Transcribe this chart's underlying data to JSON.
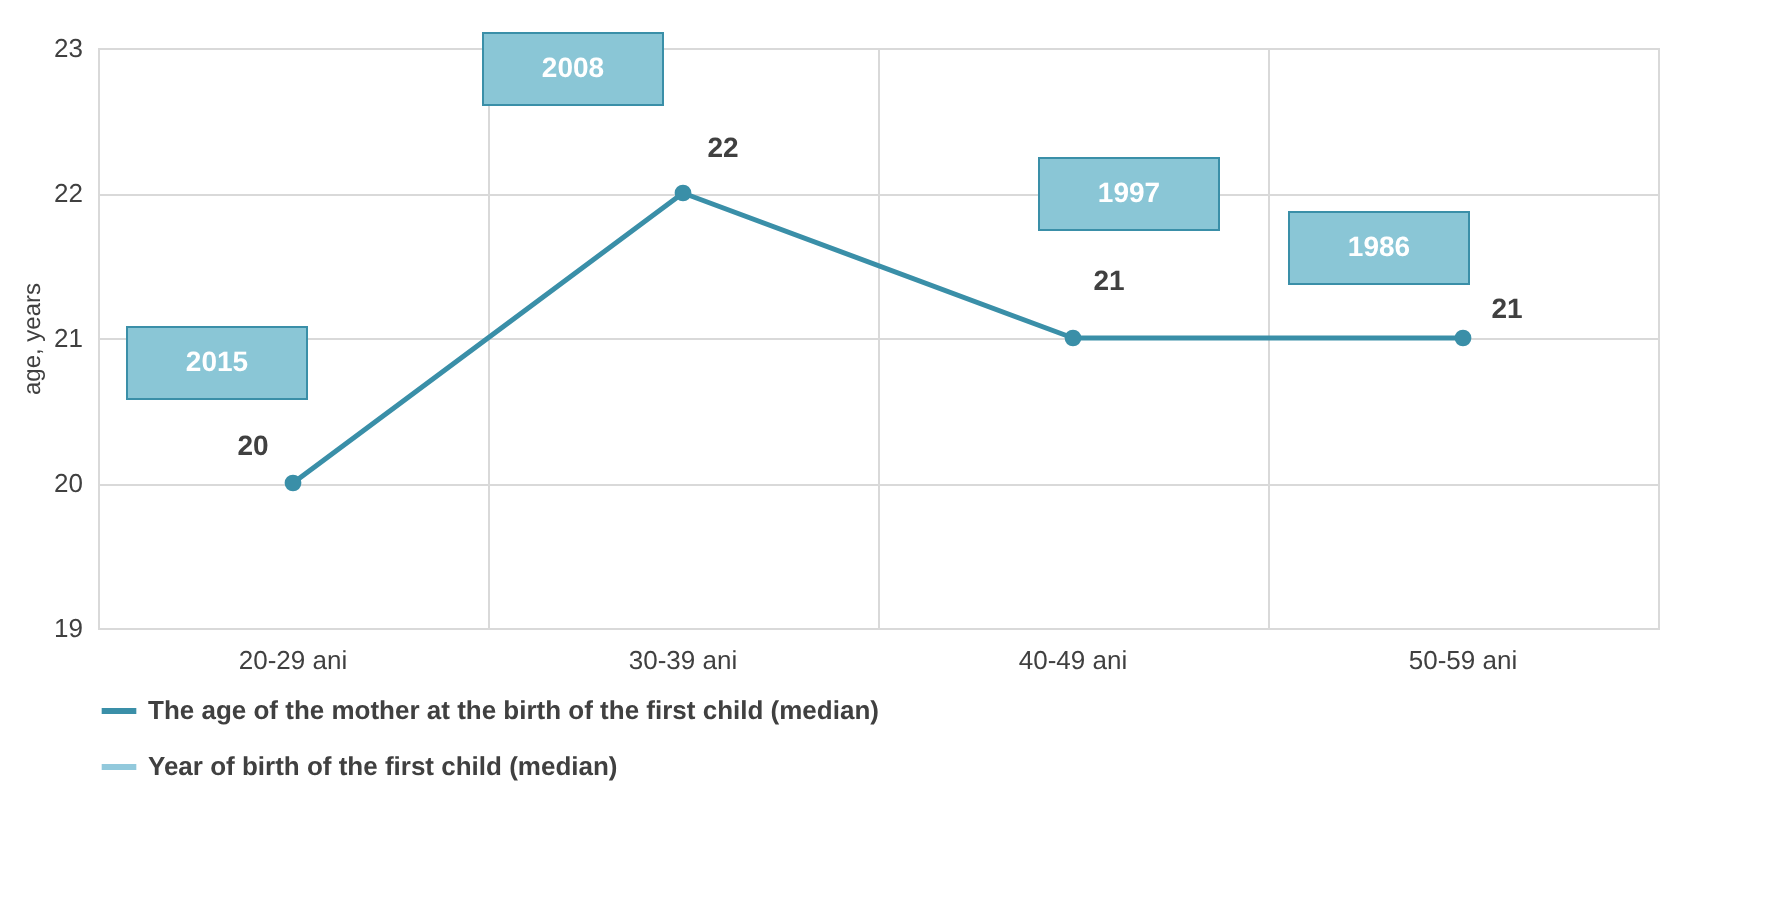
{
  "chart_data": {
    "type": "line",
    "ylabel": "age, years",
    "categories": [
      "20-29 ani",
      "30-39 ani",
      "40-49 ani",
      "50-59 ani"
    ],
    "series": [
      {
        "name": "The age of the mother at the birth of the first child (median)",
        "color": "#3a8fa8",
        "values": [
          20,
          22,
          21,
          21
        ]
      },
      {
        "name": "Year of birth of the first child (median)",
        "color": "#92c9dc",
        "values": [
          null,
          null,
          null,
          null
        ]
      }
    ],
    "annotations": [
      "2015",
      "2008",
      "1997",
      "1986"
    ],
    "ylim": [
      19,
      23
    ],
    "yticks": [
      19,
      20,
      21,
      22,
      23
    ],
    "grid": true,
    "legend": "bottom",
    "marker": "circle",
    "line_style": "solid",
    "data_labels": true
  }
}
